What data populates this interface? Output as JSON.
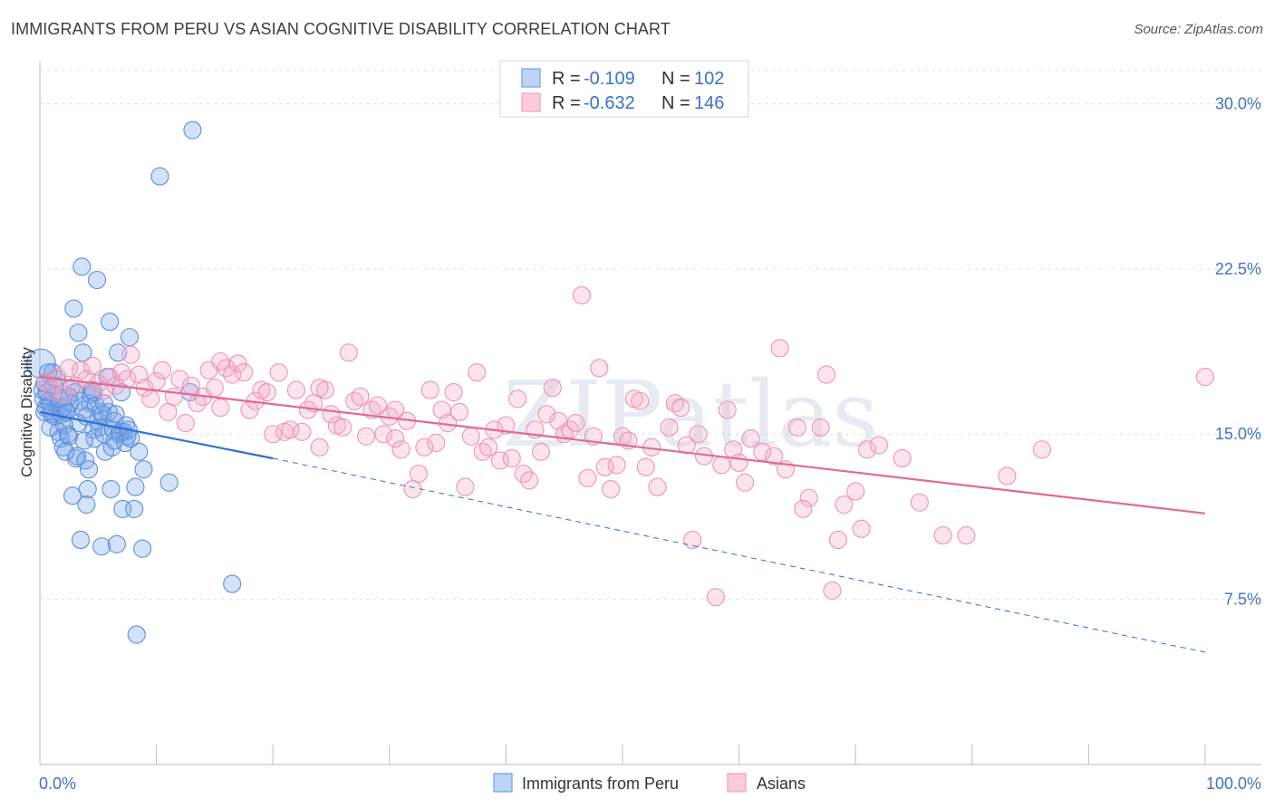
{
  "title": "IMMIGRANTS FROM PERU VS ASIAN COGNITIVE DISABILITY CORRELATION CHART",
  "source": "Source: ZipAtlas.com",
  "watermark": "ZIPatlas",
  "colors": {
    "blue": "#6fa0e6",
    "blue_line": "#2f6fd0",
    "pink": "#f0a0bc",
    "pink_line": "#e06a96",
    "tick_text": "#4472c4"
  },
  "legend": {
    "rows": [
      {
        "r_label": "R = ",
        "r_value": "-0.109",
        "n_label": "N = ",
        "n_value": "102"
      },
      {
        "r_label": "R = ",
        "r_value": "-0.632",
        "n_label": "N = ",
        "n_value": "146"
      }
    ]
  },
  "chart_data": {
    "type": "scatter",
    "xlabel": "",
    "ylabel": "Cognitive Disability",
    "xlim": [
      0,
      100
    ],
    "ylim": [
      0,
      31.5
    ],
    "x_tick_labels": [
      "0.0%",
      "100.0%"
    ],
    "y_ticks": [
      7.5,
      15.0,
      22.5,
      30.0
    ],
    "y_tick_labels": [
      "7.5%",
      "15.0%",
      "22.5%",
      "30.0%"
    ],
    "grid": true,
    "legend_position": "top-center",
    "series": [
      {
        "name": "Immigrants from Peru",
        "color": "#6fa0e6",
        "trend": {
          "x": [
            0,
            20,
            100
          ],
          "y": [
            16.0,
            13.9,
            5.1
          ]
        },
        "points": [
          [
            0.1,
            18.2
          ],
          [
            0.2,
            17.0
          ],
          [
            0.3,
            16.6
          ],
          [
            0.4,
            17.3
          ],
          [
            0.5,
            16.2
          ],
          [
            0.6,
            16.9
          ],
          [
            0.8,
            16.5
          ],
          [
            0.9,
            15.3
          ],
          [
            1.0,
            16.0
          ],
          [
            1.1,
            17.8
          ],
          [
            1.2,
            16.8
          ],
          [
            1.3,
            15.8
          ],
          [
            1.5,
            16.2
          ],
          [
            1.6,
            15.1
          ],
          [
            1.7,
            16.0
          ],
          [
            1.8,
            14.8
          ],
          [
            1.9,
            15.9
          ],
          [
            2.0,
            14.4
          ],
          [
            2.1,
            15.4
          ],
          [
            2.2,
            16.1
          ],
          [
            2.3,
            16.0
          ],
          [
            2.4,
            15.0
          ],
          [
            2.5,
            14.9
          ],
          [
            2.6,
            16.4
          ],
          [
            2.7,
            17.1
          ],
          [
            2.8,
            12.2
          ],
          [
            2.9,
            20.7
          ],
          [
            3.0,
            16.9
          ],
          [
            3.1,
            13.9
          ],
          [
            3.2,
            14.0
          ],
          [
            3.3,
            19.6
          ],
          [
            3.4,
            16.5
          ],
          [
            3.5,
            10.2
          ],
          [
            3.6,
            22.6
          ],
          [
            3.7,
            18.7
          ],
          [
            3.8,
            16.1
          ],
          [
            3.9,
            13.8
          ],
          [
            4.0,
            11.8
          ],
          [
            4.1,
            12.5
          ],
          [
            4.2,
            13.4
          ],
          [
            4.3,
            16.4
          ],
          [
            4.4,
            16.8
          ],
          [
            4.5,
            17.0
          ],
          [
            4.6,
            15.2
          ],
          [
            4.7,
            14.8
          ],
          [
            4.8,
            16.3
          ],
          [
            4.9,
            22.0
          ],
          [
            5.0,
            15.6
          ],
          [
            5.1,
            15.3
          ],
          [
            5.2,
            16.0
          ],
          [
            5.3,
            9.9
          ],
          [
            5.4,
            15.9
          ],
          [
            5.5,
            15.0
          ],
          [
            5.6,
            14.2
          ],
          [
            5.8,
            17.6
          ],
          [
            5.9,
            16.0
          ],
          [
            6.0,
            20.1
          ],
          [
            6.1,
            12.5
          ],
          [
            6.2,
            14.4
          ],
          [
            6.3,
            15.2
          ],
          [
            6.4,
            15.6
          ],
          [
            6.5,
            15.9
          ],
          [
            6.6,
            10.0
          ],
          [
            6.7,
            18.7
          ],
          [
            6.8,
            15.0
          ],
          [
            6.9,
            15.1
          ],
          [
            7.0,
            16.9
          ],
          [
            7.1,
            11.6
          ],
          [
            7.2,
            15.1
          ],
          [
            7.3,
            14.6
          ],
          [
            7.4,
            15.4
          ],
          [
            7.5,
            14.9
          ],
          [
            7.6,
            15.2
          ],
          [
            7.7,
            19.4
          ],
          [
            7.8,
            14.8
          ],
          [
            8.1,
            11.6
          ],
          [
            8.2,
            12.6
          ],
          [
            8.3,
            5.9
          ],
          [
            8.5,
            14.2
          ],
          [
            8.9,
            13.4
          ],
          [
            8.8,
            9.8
          ],
          [
            10.3,
            26.7
          ],
          [
            11.1,
            12.8
          ],
          [
            12.9,
            16.9
          ],
          [
            13.1,
            28.8
          ],
          [
            16.5,
            8.2
          ],
          [
            1.4,
            17.5
          ],
          [
            2.0,
            16.2
          ],
          [
            0.7,
            17.8
          ],
          [
            1.0,
            15.9
          ],
          [
            2.5,
            16.7
          ],
          [
            3.3,
            15.5
          ],
          [
            4.0,
            15.8
          ],
          [
            5.5,
            16.4
          ],
          [
            0.9,
            16.3
          ],
          [
            1.7,
            16.6
          ],
          [
            2.2,
            14.2
          ],
          [
            3.8,
            14.7
          ],
          [
            4.6,
            16.9
          ],
          [
            6.4,
            14.7
          ],
          [
            0.4,
            16.0
          ],
          [
            1.2,
            17.2
          ]
        ]
      },
      {
        "name": "Asians",
        "color": "#f0a0bc",
        "trend": {
          "x": [
            0,
            100
          ],
          "y": [
            17.6,
            11.4
          ]
        },
        "points": [
          [
            0.5,
            17.4
          ],
          [
            1.0,
            17.0
          ],
          [
            1.5,
            17.6
          ],
          [
            2.0,
            16.8
          ],
          [
            2.5,
            18.0
          ],
          [
            3.0,
            17.2
          ],
          [
            3.5,
            17.9
          ],
          [
            4.0,
            17.5
          ],
          [
            4.5,
            18.1
          ],
          [
            5.0,
            17.3
          ],
          [
            5.5,
            17.0
          ],
          [
            6.0,
            17.6
          ],
          [
            6.5,
            17.2
          ],
          [
            7.0,
            17.8
          ],
          [
            7.5,
            17.5
          ],
          [
            7.8,
            18.6
          ],
          [
            8.5,
            17.7
          ],
          [
            9.0,
            17.1
          ],
          [
            9.5,
            16.6
          ],
          [
            10.0,
            17.4
          ],
          [
            10.5,
            17.9
          ],
          [
            11.0,
            16.0
          ],
          [
            11.5,
            16.7
          ],
          [
            12.0,
            17.5
          ],
          [
            12.5,
            15.5
          ],
          [
            13.0,
            17.2
          ],
          [
            13.5,
            16.4
          ],
          [
            14.0,
            16.7
          ],
          [
            14.5,
            17.9
          ],
          [
            15.0,
            17.1
          ],
          [
            15.5,
            16.2
          ],
          [
            16.0,
            18.0
          ],
          [
            16.5,
            17.7
          ],
          [
            17.0,
            18.2
          ],
          [
            17.5,
            17.8
          ],
          [
            18.0,
            16.1
          ],
          [
            18.5,
            16.5
          ],
          [
            19.0,
            17.0
          ],
          [
            19.5,
            16.9
          ],
          [
            20.0,
            15.0
          ],
          [
            20.5,
            17.8
          ],
          [
            21.0,
            15.1
          ],
          [
            21.5,
            15.2
          ],
          [
            22.0,
            17.0
          ],
          [
            22.5,
            15.1
          ],
          [
            23.0,
            16.1
          ],
          [
            23.5,
            16.4
          ],
          [
            24.0,
            14.4
          ],
          [
            24.5,
            17.0
          ],
          [
            25.0,
            15.9
          ],
          [
            25.5,
            15.4
          ],
          [
            26.0,
            15.3
          ],
          [
            26.5,
            18.7
          ],
          [
            27.0,
            16.5
          ],
          [
            27.5,
            16.7
          ],
          [
            28.0,
            14.9
          ],
          [
            28.5,
            16.1
          ],
          [
            29.0,
            16.3
          ],
          [
            29.5,
            15.0
          ],
          [
            30.0,
            15.8
          ],
          [
            30.5,
            14.8
          ],
          [
            31.0,
            14.3
          ],
          [
            31.5,
            15.6
          ],
          [
            32.0,
            12.5
          ],
          [
            32.5,
            13.2
          ],
          [
            33.0,
            14.4
          ],
          [
            33.5,
            17.0
          ],
          [
            34.0,
            14.6
          ],
          [
            34.5,
            16.1
          ],
          [
            35.0,
            15.5
          ],
          [
            35.5,
            16.9
          ],
          [
            36.0,
            16.0
          ],
          [
            36.5,
            12.6
          ],
          [
            37.0,
            14.9
          ],
          [
            37.5,
            17.8
          ],
          [
            38.0,
            14.2
          ],
          [
            38.5,
            14.4
          ],
          [
            39.0,
            15.2
          ],
          [
            39.5,
            13.8
          ],
          [
            40.0,
            15.4
          ],
          [
            40.5,
            13.9
          ],
          [
            41.0,
            16.6
          ],
          [
            41.5,
            13.2
          ],
          [
            42.0,
            12.9
          ],
          [
            42.5,
            15.2
          ],
          [
            43.0,
            14.2
          ],
          [
            43.5,
            15.9
          ],
          [
            44.0,
            17.1
          ],
          [
            44.5,
            15.6
          ],
          [
            45.0,
            15.0
          ],
          [
            45.5,
            15.2
          ],
          [
            46.0,
            15.5
          ],
          [
            46.5,
            21.3
          ],
          [
            47.0,
            13.0
          ],
          [
            47.5,
            14.9
          ],
          [
            48.0,
            18.0
          ],
          [
            48.5,
            13.5
          ],
          [
            49.0,
            12.5
          ],
          [
            49.5,
            13.6
          ],
          [
            50.0,
            14.9
          ],
          [
            50.5,
            14.7
          ],
          [
            51.0,
            16.6
          ],
          [
            51.5,
            16.5
          ],
          [
            52.0,
            13.5
          ],
          [
            52.5,
            14.4
          ],
          [
            53.0,
            12.6
          ],
          [
            54.0,
            15.3
          ],
          [
            54.5,
            16.4
          ],
          [
            55.0,
            16.2
          ],
          [
            55.5,
            14.5
          ],
          [
            56.0,
            10.2
          ],
          [
            56.5,
            15.0
          ],
          [
            57.0,
            14.0
          ],
          [
            58.0,
            7.6
          ],
          [
            58.5,
            13.6
          ],
          [
            59.0,
            16.1
          ],
          [
            59.5,
            14.3
          ],
          [
            60.0,
            13.7
          ],
          [
            60.5,
            12.8
          ],
          [
            61.0,
            14.8
          ],
          [
            62.0,
            14.2
          ],
          [
            63.0,
            14.0
          ],
          [
            63.5,
            18.9
          ],
          [
            64.0,
            13.4
          ],
          [
            65.0,
            15.3
          ],
          [
            66.0,
            12.1
          ],
          [
            67.0,
            15.3
          ],
          [
            67.5,
            17.7
          ],
          [
            68.5,
            10.2
          ],
          [
            69.0,
            11.8
          ],
          [
            70.0,
            12.4
          ],
          [
            70.5,
            10.7
          ],
          [
            71.0,
            14.3
          ],
          [
            72.0,
            14.5
          ],
          [
            74.0,
            13.9
          ],
          [
            75.5,
            11.9
          ],
          [
            77.5,
            10.4
          ],
          [
            79.5,
            10.4
          ],
          [
            83.0,
            13.1
          ],
          [
            86.0,
            14.3
          ],
          [
            100.0,
            17.6
          ],
          [
            65.5,
            11.6
          ],
          [
            68.0,
            7.9
          ],
          [
            15.5,
            18.3
          ],
          [
            24.0,
            17.1
          ],
          [
            30.5,
            16.1
          ]
        ]
      }
    ]
  }
}
